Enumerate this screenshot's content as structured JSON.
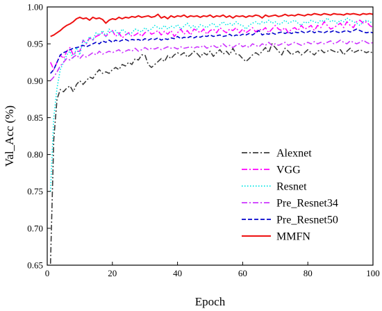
{
  "chart_data": {
    "type": "line",
    "xlabel": "Epoch",
    "ylabel": "Val_Acc (%)",
    "xlim": [
      0,
      100
    ],
    "ylim": [
      0.65,
      1.0
    ],
    "xticks": [
      "0",
      "20",
      "40",
      "60",
      "80",
      "100"
    ],
    "yticks": [
      "0.65",
      "0.70",
      "0.75",
      "0.80",
      "0.85",
      "0.90",
      "0.95",
      "1.00"
    ],
    "grid": false,
    "legend_position": "bottom-right",
    "series": [
      {
        "name": "Alexnet",
        "color": "#3a3a3a",
        "dash": "dashdot",
        "x": [
          1,
          2,
          3,
          4,
          5,
          6,
          7,
          8,
          9,
          10,
          11,
          12,
          13,
          14,
          15,
          16,
          17,
          18,
          19,
          20,
          21,
          22,
          23,
          24,
          25,
          26,
          27,
          28,
          29,
          30,
          31,
          32,
          33,
          34,
          35,
          36,
          37,
          38,
          39,
          40,
          41,
          42,
          43,
          44,
          45,
          46,
          47,
          48,
          49,
          50,
          51,
          52,
          53,
          54,
          55,
          56,
          57,
          58,
          59,
          60,
          61,
          62,
          63,
          64,
          65,
          66,
          67,
          68,
          69,
          70,
          71,
          72,
          73,
          74,
          75,
          76,
          77,
          78,
          79,
          80,
          81,
          82,
          83,
          84,
          85,
          86,
          87,
          88,
          89,
          90,
          91,
          92,
          93,
          94,
          95,
          96,
          97,
          98,
          99,
          100
        ],
        "values": [
          0.652,
          0.82,
          0.875,
          0.888,
          0.885,
          0.89,
          0.893,
          0.885,
          0.895,
          0.9,
          0.895,
          0.9,
          0.905,
          0.903,
          0.91,
          0.915,
          0.91,
          0.912,
          0.91,
          0.915,
          0.918,
          0.915,
          0.922,
          0.92,
          0.925,
          0.922,
          0.93,
          0.928,
          0.935,
          0.935,
          0.922,
          0.918,
          0.922,
          0.926,
          0.93,
          0.926,
          0.934,
          0.93,
          0.935,
          0.938,
          0.935,
          0.938,
          0.932,
          0.935,
          0.94,
          0.937,
          0.932,
          0.938,
          0.935,
          0.94,
          0.933,
          0.938,
          0.942,
          0.936,
          0.94,
          0.935,
          0.944,
          0.936,
          0.935,
          0.93,
          0.926,
          0.93,
          0.935,
          0.938,
          0.935,
          0.94,
          0.945,
          0.938,
          0.95,
          0.945,
          0.94,
          0.935,
          0.944,
          0.94,
          0.935,
          0.938,
          0.94,
          0.935,
          0.938,
          0.942,
          0.938,
          0.935,
          0.94,
          0.942,
          0.938,
          0.94,
          0.942,
          0.94,
          0.938,
          0.942,
          0.935,
          0.94,
          0.944,
          0.938,
          0.94,
          0.942,
          0.94,
          0.938,
          0.94,
          0.937
        ]
      },
      {
        "name": "VGG",
        "color": "#ff00ff",
        "dash": "dashdot",
        "x": [
          1,
          2,
          3,
          4,
          5,
          6,
          7,
          8,
          9,
          10,
          11,
          12,
          13,
          14,
          15,
          16,
          17,
          18,
          19,
          20,
          21,
          22,
          23,
          24,
          25,
          26,
          27,
          28,
          29,
          30,
          31,
          32,
          33,
          34,
          35,
          36,
          37,
          38,
          39,
          40,
          41,
          42,
          43,
          44,
          45,
          46,
          47,
          48,
          49,
          50,
          51,
          52,
          53,
          54,
          55,
          56,
          57,
          58,
          59,
          60,
          61,
          62,
          63,
          64,
          65,
          66,
          67,
          68,
          69,
          70,
          71,
          72,
          73,
          74,
          75,
          76,
          77,
          78,
          79,
          80,
          81,
          82,
          83,
          84,
          85,
          86,
          87,
          88,
          89,
          90,
          91,
          92,
          93,
          94,
          95,
          96,
          97,
          98,
          99,
          100
        ],
        "values": [
          0.925,
          0.915,
          0.925,
          0.935,
          0.93,
          0.94,
          0.945,
          0.935,
          0.94,
          0.94,
          0.955,
          0.95,
          0.958,
          0.955,
          0.96,
          0.962,
          0.965,
          0.96,
          0.965,
          0.968,
          0.96,
          0.965,
          0.958,
          0.962,
          0.965,
          0.96,
          0.962,
          0.965,
          0.96,
          0.965,
          0.968,
          0.963,
          0.965,
          0.968,
          0.962,
          0.967,
          0.963,
          0.968,
          0.96,
          0.965,
          0.97,
          0.963,
          0.968,
          0.962,
          0.97,
          0.968,
          0.965,
          0.97,
          0.963,
          0.968,
          0.97,
          0.965,
          0.972,
          0.968,
          0.965,
          0.97,
          0.968,
          0.972,
          0.965,
          0.97,
          0.965,
          0.968,
          0.972,
          0.966,
          0.97,
          0.968,
          0.972,
          0.965,
          0.97,
          0.975,
          0.97,
          0.968,
          0.972,
          0.965,
          0.97,
          0.972,
          0.968,
          0.975,
          0.97,
          0.972,
          0.975,
          0.968,
          0.975,
          0.972,
          0.98,
          0.975,
          0.97,
          0.972,
          0.975,
          0.978,
          0.972,
          0.98,
          0.975,
          0.972,
          0.98,
          0.982,
          0.978,
          0.98,
          0.975,
          0.972
        ]
      },
      {
        "name": "Resnet",
        "color": "#00e5e5",
        "dash": "dot",
        "x": [
          1,
          2,
          3,
          4,
          5,
          6,
          7,
          8,
          9,
          10,
          11,
          12,
          13,
          14,
          15,
          16,
          17,
          18,
          19,
          20,
          21,
          22,
          23,
          24,
          25,
          26,
          27,
          28,
          29,
          30,
          31,
          32,
          33,
          34,
          35,
          36,
          37,
          38,
          39,
          40,
          41,
          42,
          43,
          44,
          45,
          46,
          47,
          48,
          49,
          50,
          51,
          52,
          53,
          54,
          55,
          56,
          57,
          58,
          59,
          60,
          61,
          62,
          63,
          64,
          65,
          66,
          67,
          68,
          69,
          70,
          71,
          72,
          73,
          74,
          75,
          76,
          77,
          78,
          79,
          80,
          81,
          82,
          83,
          84,
          85,
          86,
          87,
          88,
          89,
          90,
          91,
          92,
          93,
          94,
          95,
          96,
          97,
          98,
          99,
          100
        ],
        "values": [
          0.75,
          0.85,
          0.89,
          0.915,
          0.925,
          0.935,
          0.94,
          0.93,
          0.945,
          0.935,
          0.955,
          0.95,
          0.96,
          0.955,
          0.965,
          0.962,
          0.968,
          0.96,
          0.97,
          0.965,
          0.968,
          0.962,
          0.97,
          0.966,
          0.962,
          0.965,
          0.97,
          0.968,
          0.966,
          0.972,
          0.968,
          0.97,
          0.975,
          0.972,
          0.97,
          0.975,
          0.97,
          0.974,
          0.972,
          0.976,
          0.97,
          0.974,
          0.978,
          0.972,
          0.975,
          0.97,
          0.976,
          0.974,
          0.972,
          0.976,
          0.978,
          0.972,
          0.976,
          0.98,
          0.975,
          0.978,
          0.975,
          0.98,
          0.976,
          0.975,
          0.97,
          0.975,
          0.978,
          0.98,
          0.976,
          0.98,
          0.978,
          0.982,
          0.978,
          0.98,
          0.976,
          0.978,
          0.982,
          0.978,
          0.98,
          0.982,
          0.978,
          0.975,
          0.98,
          0.978,
          0.982,
          0.98,
          0.978,
          0.982,
          0.98,
          0.985,
          0.98,
          0.982,
          0.978,
          0.982,
          0.98,
          0.985,
          0.982,
          0.98,
          0.978,
          0.975,
          0.98,
          0.982,
          0.98,
          0.978
        ]
      },
      {
        "name": "Pre_Resnet34",
        "color": "#cc33ff",
        "dash": "dashdot",
        "x": [
          1,
          2,
          3,
          4,
          5,
          6,
          7,
          8,
          9,
          10,
          11,
          12,
          13,
          14,
          15,
          16,
          17,
          18,
          19,
          20,
          21,
          22,
          23,
          24,
          25,
          26,
          27,
          28,
          29,
          30,
          31,
          32,
          33,
          34,
          35,
          36,
          37,
          38,
          39,
          40,
          41,
          42,
          43,
          44,
          45,
          46,
          47,
          48,
          49,
          50,
          51,
          52,
          53,
          54,
          55,
          56,
          57,
          58,
          59,
          60,
          61,
          62,
          63,
          64,
          65,
          66,
          67,
          68,
          69,
          70,
          71,
          72,
          73,
          74,
          75,
          76,
          77,
          78,
          79,
          80,
          81,
          82,
          83,
          84,
          85,
          86,
          87,
          88,
          89,
          90,
          91,
          92,
          93,
          94,
          95,
          96,
          97,
          98,
          99,
          100
        ],
        "values": [
          0.9,
          0.905,
          0.912,
          0.92,
          0.925,
          0.93,
          0.928,
          0.932,
          0.935,
          0.93,
          0.935,
          0.932,
          0.935,
          0.938,
          0.935,
          0.94,
          0.936,
          0.938,
          0.94,
          0.938,
          0.94,
          0.942,
          0.938,
          0.94,
          0.942,
          0.94,
          0.944,
          0.94,
          0.942,
          0.945,
          0.942,
          0.944,
          0.943,
          0.945,
          0.942,
          0.944,
          0.946,
          0.944,
          0.945,
          0.943,
          0.946,
          0.944,
          0.945,
          0.946,
          0.944,
          0.946,
          0.945,
          0.948,
          0.944,
          0.946,
          0.948,
          0.945,
          0.946,
          0.95,
          0.946,
          0.948,
          0.945,
          0.948,
          0.95,
          0.946,
          0.948,
          0.945,
          0.95,
          0.948,
          0.946,
          0.95,
          0.948,
          0.952,
          0.948,
          0.95,
          0.948,
          0.95,
          0.952,
          0.948,
          0.95,
          0.952,
          0.95,
          0.948,
          0.95,
          0.952,
          0.95,
          0.953,
          0.95,
          0.952,
          0.95,
          0.952,
          0.954,
          0.95,
          0.952,
          0.955,
          0.952,
          0.95,
          0.954,
          0.952,
          0.95,
          0.952,
          0.955,
          0.952,
          0.95,
          0.952
        ]
      },
      {
        "name": "Pre_Resnet50",
        "color": "#0000cc",
        "dash": "dash",
        "x": [
          1,
          2,
          3,
          4,
          5,
          6,
          7,
          8,
          9,
          10,
          11,
          12,
          13,
          14,
          15,
          16,
          17,
          18,
          19,
          20,
          21,
          22,
          23,
          24,
          25,
          26,
          27,
          28,
          29,
          30,
          31,
          32,
          33,
          34,
          35,
          36,
          37,
          38,
          39,
          40,
          41,
          42,
          43,
          44,
          45,
          46,
          47,
          48,
          49,
          50,
          51,
          52,
          53,
          54,
          55,
          56,
          57,
          58,
          59,
          60,
          61,
          62,
          63,
          64,
          65,
          66,
          67,
          68,
          69,
          70,
          71,
          72,
          73,
          74,
          75,
          76,
          77,
          78,
          79,
          80,
          81,
          82,
          83,
          84,
          85,
          86,
          87,
          88,
          89,
          90,
          91,
          92,
          93,
          94,
          95,
          96,
          97,
          98,
          99,
          100
        ],
        "values": [
          0.91,
          0.915,
          0.925,
          0.935,
          0.938,
          0.94,
          0.942,
          0.944,
          0.945,
          0.946,
          0.948,
          0.946,
          0.948,
          0.95,
          0.952,
          0.95,
          0.954,
          0.952,
          0.955,
          0.952,
          0.955,
          0.953,
          0.955,
          0.956,
          0.954,
          0.956,
          0.955,
          0.956,
          0.954,
          0.957,
          0.955,
          0.957,
          0.956,
          0.958,
          0.955,
          0.957,
          0.956,
          0.958,
          0.957,
          0.96,
          0.957,
          0.959,
          0.958,
          0.96,
          0.958,
          0.96,
          0.959,
          0.961,
          0.96,
          0.962,
          0.96,
          0.961,
          0.962,
          0.96,
          0.961,
          0.963,
          0.96,
          0.962,
          0.961,
          0.963,
          0.962,
          0.964,
          0.962,
          0.965,
          0.968,
          0.962,
          0.964,
          0.963,
          0.965,
          0.963,
          0.965,
          0.966,
          0.964,
          0.966,
          0.964,
          0.966,
          0.965,
          0.967,
          0.965,
          0.966,
          0.968,
          0.965,
          0.967,
          0.966,
          0.965,
          0.967,
          0.966,
          0.968,
          0.966,
          0.965,
          0.967,
          0.968,
          0.966,
          0.968,
          0.97,
          0.968,
          0.966,
          0.965,
          0.966,
          0.965
        ]
      },
      {
        "name": "MMFN",
        "color": "#ee1111",
        "dash": "solid",
        "x": [
          1,
          2,
          3,
          4,
          5,
          6,
          7,
          8,
          9,
          10,
          11,
          12,
          13,
          14,
          15,
          16,
          17,
          18,
          19,
          20,
          21,
          22,
          23,
          24,
          25,
          26,
          27,
          28,
          29,
          30,
          31,
          32,
          33,
          34,
          35,
          36,
          37,
          38,
          39,
          40,
          41,
          42,
          43,
          44,
          45,
          46,
          47,
          48,
          49,
          50,
          51,
          52,
          53,
          54,
          55,
          56,
          57,
          58,
          59,
          60,
          61,
          62,
          63,
          64,
          65,
          66,
          67,
          68,
          69,
          70,
          71,
          72,
          73,
          74,
          75,
          76,
          77,
          78,
          79,
          80,
          81,
          82,
          83,
          84,
          85,
          86,
          87,
          88,
          89,
          90,
          91,
          92,
          93,
          94,
          95,
          96,
          97,
          98,
          99,
          100
        ],
        "values": [
          0.96,
          0.962,
          0.965,
          0.968,
          0.972,
          0.975,
          0.977,
          0.98,
          0.984,
          0.986,
          0.984,
          0.985,
          0.982,
          0.986,
          0.984,
          0.985,
          0.983,
          0.978,
          0.982,
          0.984,
          0.983,
          0.986,
          0.984,
          0.986,
          0.985,
          0.987,
          0.986,
          0.988,
          0.986,
          0.987,
          0.988,
          0.986,
          0.987,
          0.99,
          0.985,
          0.987,
          0.984,
          0.988,
          0.986,
          0.988,
          0.987,
          0.989,
          0.986,
          0.988,
          0.987,
          0.988,
          0.986,
          0.988,
          0.987,
          0.989,
          0.986,
          0.988,
          0.987,
          0.989,
          0.986,
          0.988,
          0.985,
          0.988,
          0.987,
          0.988,
          0.986,
          0.988,
          0.987,
          0.989,
          0.988,
          0.985,
          0.989,
          0.987,
          0.988,
          0.989,
          0.987,
          0.988,
          0.99,
          0.988,
          0.989,
          0.988,
          0.99,
          0.989,
          0.988,
          0.99,
          0.989,
          0.991,
          0.99,
          0.989,
          0.991,
          0.99,
          0.989,
          0.991,
          0.99,
          0.99,
          0.989,
          0.991,
          0.99,
          0.991,
          0.99,
          0.989,
          0.991,
          0.99,
          0.991,
          0.99
        ]
      }
    ]
  }
}
